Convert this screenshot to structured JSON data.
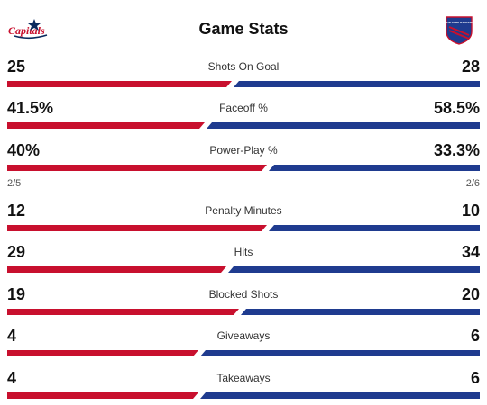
{
  "header": {
    "title": "Game Stats",
    "home_logo_icon": "capitals-logo-icon",
    "away_logo_icon": "rangers-logo-icon",
    "home_logo_text": "Capitals",
    "away_logo_text": "NEW YORK RANGERS"
  },
  "colors": {
    "home": "#c8102e",
    "away": "#1f3b8f"
  },
  "stats": [
    {
      "label": "Shots On Goal",
      "left": "25",
      "right": "28",
      "left_num": 25,
      "right_num": 28
    },
    {
      "label": "Faceoff %",
      "left": "41.5%",
      "right": "58.5%",
      "left_num": 41.5,
      "right_num": 58.5
    },
    {
      "label": "Power-Play %",
      "left": "40%",
      "right": "33.3%",
      "left_num": 40,
      "right_num": 33.3,
      "sub_left": "2/5",
      "sub_right": "2/6"
    },
    {
      "label": "Penalty Minutes",
      "left": "12",
      "right": "10",
      "left_num": 12,
      "right_num": 10
    },
    {
      "label": "Hits",
      "left": "29",
      "right": "34",
      "left_num": 29,
      "right_num": 34
    },
    {
      "label": "Blocked Shots",
      "left": "19",
      "right": "20",
      "left_num": 19,
      "right_num": 20
    },
    {
      "label": "Giveaways",
      "left": "4",
      "right": "6",
      "left_num": 4,
      "right_num": 6
    },
    {
      "label": "Takeaways",
      "left": "4",
      "right": "6",
      "left_num": 4,
      "right_num": 6
    }
  ]
}
